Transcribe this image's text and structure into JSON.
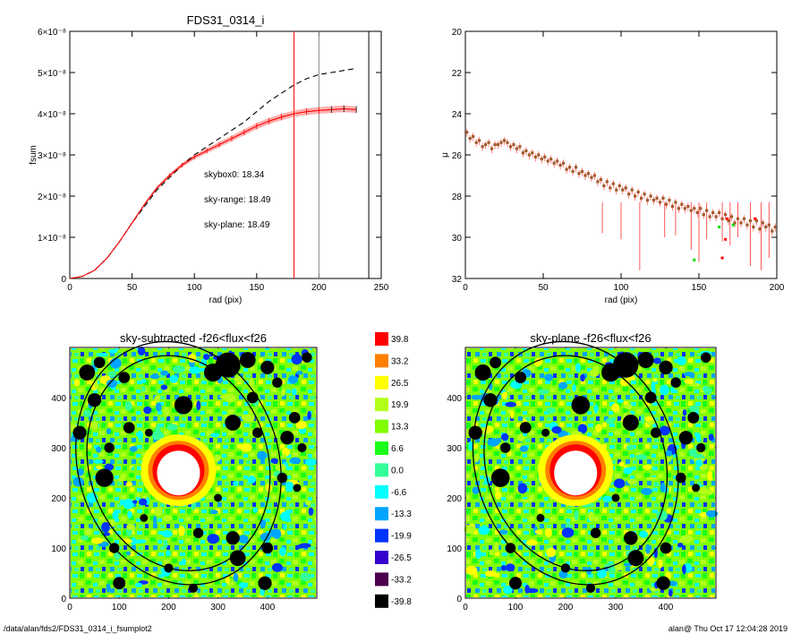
{
  "footer": {
    "path": "/data/alan/fds2/FDS31_0314_i_fsumplot2",
    "stamp": "alan@  Thu Oct 17 12:04:28 2019"
  },
  "chart_data": [
    {
      "id": "growth",
      "type": "line",
      "title": "FDS31_0314_i",
      "xlabel": "rad (pix)",
      "ylabel": "fsum",
      "xlim": [
        0,
        250
      ],
      "ylim": [
        0,
        6e-08
      ],
      "xticks": [
        "0",
        "50",
        "100",
        "150",
        "200",
        "250"
      ],
      "xtick_values": [
        0,
        50,
        100,
        150,
        200,
        250
      ],
      "yticks": [
        "0",
        "1×10⁻⁸",
        "2×10⁻⁸",
        "3×10⁻⁸",
        "4×10⁻⁸",
        "5×10⁻⁸",
        "6×10⁻⁸"
      ],
      "ytick_values": [
        0,
        1e-08,
        2e-08,
        3e-08,
        4e-08,
        5e-08,
        6e-08
      ],
      "annotations": [
        {
          "text": "skybox0: 18.34",
          "color": "#000000"
        },
        {
          "text": "sky-range: 18.49",
          "color": "#ff0000"
        },
        {
          "text": "sky-plane: 18.49",
          "color": "#00dd00"
        }
      ],
      "vlines": [
        {
          "x": 180,
          "color": "#ff0000"
        },
        {
          "x": 200,
          "color": "#888888"
        },
        {
          "x": 240,
          "color": "#000000"
        }
      ],
      "series": [
        {
          "style": "dashed",
          "color": "#000000",
          "x": [
            0,
            10,
            20,
            30,
            40,
            50,
            60,
            70,
            80,
            90,
            100,
            110,
            120,
            130,
            140,
            150,
            160,
            170,
            180,
            190,
            200,
            210,
            220,
            230
          ],
          "y": [
            0,
            5e-10,
            2e-09,
            5e-09,
            9e-09,
            1.35e-08,
            1.75e-08,
            2.15e-08,
            2.45e-08,
            2.75e-08,
            3e-08,
            3.2e-08,
            3.4e-08,
            3.6e-08,
            3.8e-08,
            4.05e-08,
            4.3e-08,
            4.5e-08,
            4.7e-08,
            4.85e-08,
            4.95e-08,
            5e-08,
            5.05e-08,
            5.1e-08
          ]
        },
        {
          "style": "solid",
          "color": "#ff0000",
          "x": [
            0,
            10,
            20,
            30,
            40,
            50,
            60,
            70,
            80,
            90,
            100,
            110,
            120,
            130,
            140,
            150,
            160,
            170,
            180,
            190,
            200,
            210,
            220,
            230
          ],
          "y": [
            0,
            5e-10,
            2e-09,
            5e-09,
            9e-09,
            1.35e-08,
            1.8e-08,
            2.2e-08,
            2.5e-08,
            2.75e-08,
            2.95e-08,
            3.1e-08,
            3.25e-08,
            3.4e-08,
            3.55e-08,
            3.7e-08,
            3.82e-08,
            3.92e-08,
            4e-08,
            4.05e-08,
            4.08e-08,
            4.1e-08,
            4.12e-08,
            4.1e-08
          ]
        }
      ]
    },
    {
      "id": "profile",
      "type": "scatter",
      "xlabel": "rad (pix)",
      "ylabel": "μ",
      "xlim": [
        0,
        200
      ],
      "ylim": [
        32,
        20
      ],
      "xticks": [
        "0",
        "50",
        "100",
        "150",
        "200"
      ],
      "xtick_values": [
        0,
        50,
        100,
        150,
        200
      ],
      "yticks": [
        "20",
        "22",
        "24",
        "26",
        "28",
        "30",
        "32"
      ],
      "ytick_values": [
        20,
        22,
        24,
        26,
        28,
        30,
        32
      ],
      "points": [
        [
          1,
          24.9
        ],
        [
          3,
          25.2
        ],
        [
          5,
          25.1
        ],
        [
          7,
          25.4
        ],
        [
          9,
          25.3
        ],
        [
          11,
          25.6
        ],
        [
          13,
          25.5
        ],
        [
          15,
          25.4
        ],
        [
          17,
          25.7
        ],
        [
          19,
          25.5
        ],
        [
          21,
          25.5
        ],
        [
          23,
          25.4
        ],
        [
          25,
          25.3
        ],
        [
          27,
          25.4
        ],
        [
          29,
          25.6
        ],
        [
          31,
          25.5
        ],
        [
          33,
          25.7
        ],
        [
          35,
          25.6
        ],
        [
          37,
          25.9
        ],
        [
          39,
          25.8
        ],
        [
          41,
          26.0
        ],
        [
          43,
          25.9
        ],
        [
          45,
          26.1
        ],
        [
          47,
          26.0
        ],
        [
          49,
          26.2
        ],
        [
          51,
          26.1
        ],
        [
          53,
          26.3
        ],
        [
          55,
          26.2
        ],
        [
          57,
          26.4
        ],
        [
          59,
          26.3
        ],
        [
          61,
          26.5
        ],
        [
          63,
          26.4
        ],
        [
          65,
          26.7
        ],
        [
          67,
          26.6
        ],
        [
          69,
          26.8
        ],
        [
          71,
          26.6
        ],
        [
          73,
          26.9
        ],
        [
          75,
          26.8
        ],
        [
          77,
          27.0
        ],
        [
          79,
          26.9
        ],
        [
          81,
          27.1
        ],
        [
          83,
          27.0
        ],
        [
          85,
          27.3
        ],
        [
          87,
          27.2
        ],
        [
          89,
          27.5
        ],
        [
          91,
          27.3
        ],
        [
          93,
          27.6
        ],
        [
          95,
          27.4
        ],
        [
          97,
          27.7
        ],
        [
          99,
          27.5
        ],
        [
          101,
          27.7
        ],
        [
          103,
          27.6
        ],
        [
          105,
          27.9
        ],
        [
          107,
          27.7
        ],
        [
          109,
          28.0
        ],
        [
          111,
          27.8
        ],
        [
          113,
          28.1
        ],
        [
          115,
          27.9
        ],
        [
          117,
          28.2
        ],
        [
          119,
          28.0
        ],
        [
          121,
          28.2
        ],
        [
          123,
          28.1
        ],
        [
          125,
          28.3
        ],
        [
          127,
          28.1
        ],
        [
          129,
          28.4
        ],
        [
          131,
          28.2
        ],
        [
          133,
          28.5
        ],
        [
          135,
          28.3
        ],
        [
          137,
          28.6
        ],
        [
          139,
          28.4
        ],
        [
          141,
          28.6
        ],
        [
          143,
          28.5
        ],
        [
          145,
          28.7
        ],
        [
          147,
          28.6
        ],
        [
          149,
          28.8
        ],
        [
          151,
          28.6
        ],
        [
          153,
          28.9
        ],
        [
          155,
          28.7
        ],
        [
          157,
          29.0
        ],
        [
          159,
          28.8
        ],
        [
          161,
          29.0
        ],
        [
          163,
          28.8
        ],
        [
          165,
          29.1
        ],
        [
          167,
          28.9
        ],
        [
          169,
          29.2
        ],
        [
          171,
          29.0
        ],
        [
          173,
          29.3
        ],
        [
          175,
          29.1
        ],
        [
          177,
          29.3
        ],
        [
          179,
          29.1
        ],
        [
          181,
          29.4
        ],
        [
          183,
          29.2
        ],
        [
          185,
          29.5
        ],
        [
          187,
          29.2
        ],
        [
          189,
          29.6
        ],
        [
          191,
          29.3
        ],
        [
          193,
          29.5
        ],
        [
          195,
          29.4
        ],
        [
          197,
          29.7
        ],
        [
          199,
          29.5
        ]
      ],
      "spikes": [
        [
          112,
          31.6
        ],
        [
          128,
          30.0
        ],
        [
          145,
          30.6
        ],
        [
          150,
          31.2
        ],
        [
          155,
          30.1
        ],
        [
          170,
          30.4
        ],
        [
          183,
          31.4
        ],
        [
          190,
          31.6
        ],
        [
          195,
          31.0
        ],
        [
          100,
          30.1
        ],
        [
          88,
          29.8
        ],
        [
          135,
          29.9
        ],
        [
          165,
          30.2
        ],
        [
          175,
          30.0
        ]
      ],
      "green_points": [
        [
          147,
          31.1
        ],
        [
          163,
          29.5
        ],
        [
          172,
          29.4
        ]
      ],
      "red_points": [
        [
          168,
          29.1
        ],
        [
          165,
          31.0
        ],
        [
          186,
          29.1
        ],
        [
          167,
          30.1
        ]
      ]
    },
    {
      "id": "map-left",
      "type": "heatmap",
      "title": "sky-subtracted -f26<flux<f26",
      "xlim": [
        0,
        500
      ],
      "ylim": [
        0,
        500
      ],
      "xticks": [
        "0",
        "100",
        "200",
        "300",
        "400"
      ],
      "xtick_values": [
        0,
        100,
        200,
        300,
        400
      ],
      "yticks": [
        "0",
        "100",
        "200",
        "300",
        "400"
      ],
      "ytick_values": [
        0,
        100,
        200,
        300,
        400
      ]
    },
    {
      "id": "map-right",
      "type": "heatmap",
      "title": "sky-plane -f26<flux<f26",
      "xlim": [
        0,
        500
      ],
      "ylim": [
        0,
        500
      ],
      "xticks": [
        "0",
        "100",
        "200",
        "300",
        "400"
      ],
      "xtick_values": [
        0,
        100,
        200,
        300,
        400
      ],
      "yticks": [
        "0",
        "100",
        "200",
        "300",
        "400"
      ],
      "ytick_values": [
        0,
        100,
        200,
        300,
        400
      ]
    },
    {
      "id": "colorbar",
      "type": "table",
      "levels": [
        {
          "label": "39.8",
          "color": "#ff0000"
        },
        {
          "label": "33.2",
          "color": "#ff7f00"
        },
        {
          "label": "26.5",
          "color": "#ffff00"
        },
        {
          "label": "19.9",
          "color": "#b2ff19"
        },
        {
          "label": "13.3",
          "color": "#7fff00"
        },
        {
          "label": "6.6",
          "color": "#19ff19"
        },
        {
          "label": "0.0",
          "color": "#33ff99"
        },
        {
          "label": "-6.6",
          "color": "#00ffff"
        },
        {
          "label": "-13.3",
          "color": "#00a5ff"
        },
        {
          "label": "-19.9",
          "color": "#0033ff"
        },
        {
          "label": "-26.5",
          "color": "#3300cc"
        },
        {
          "label": "-33.2",
          "color": "#4c004c"
        },
        {
          "label": "-39.8",
          "color": "#000000"
        }
      ]
    }
  ]
}
